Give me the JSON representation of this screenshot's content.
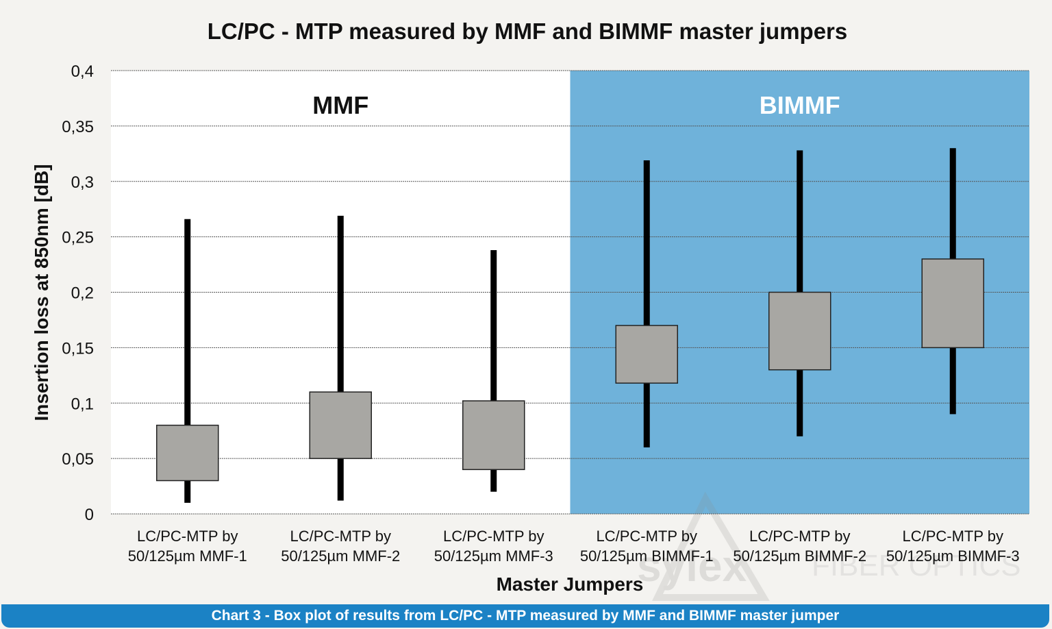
{
  "chart_data": {
    "type": "box",
    "title": "LC/PC - MTP measured by MMF and BIMMF master jumpers",
    "xlabel": "Master Jumpers",
    "ylabel": "Insertion loss at 850nm [dB]",
    "ylim": [
      0,
      0.4
    ],
    "yticks": [
      "0",
      "0,05",
      "0,1",
      "0,15",
      "0,2",
      "0,25",
      "0,3",
      "0,35",
      "0,4"
    ],
    "grid": true,
    "regions": [
      {
        "label": "MMF",
        "categories": [
          0,
          1,
          2
        ],
        "color": "#ffffff"
      },
      {
        "label": "BIMMF",
        "categories": [
          3,
          4,
          5
        ],
        "color": "#6fb2da"
      }
    ],
    "categories": [
      [
        "LC/PC-MTP by",
        "50/125µm MMF-1"
      ],
      [
        "LC/PC-MTP by",
        "50/125µm MMF-2"
      ],
      [
        "LC/PC-MTP by",
        "50/125µm MMF-3"
      ],
      [
        "LC/PC-MTP by",
        "50/125µm BIMMF-1"
      ],
      [
        "LC/PC-MTP by",
        "50/125µm BIMMF-2"
      ],
      [
        "LC/PC-MTP by",
        "50/125µm BIMMF-3"
      ]
    ],
    "boxes": [
      {
        "min": 0.01,
        "q1": 0.03,
        "q3": 0.08,
        "max": 0.266
      },
      {
        "min": 0.012,
        "q1": 0.05,
        "q3": 0.11,
        "max": 0.269
      },
      {
        "min": 0.02,
        "q1": 0.04,
        "q3": 0.102,
        "max": 0.238
      },
      {
        "min": 0.06,
        "q1": 0.118,
        "q3": 0.17,
        "max": 0.319
      },
      {
        "min": 0.07,
        "q1": 0.13,
        "q3": 0.2,
        "max": 0.328
      },
      {
        "min": 0.09,
        "q1": 0.15,
        "q3": 0.23,
        "max": 0.33
      }
    ],
    "box_color": "#a8a7a3",
    "whisker_color": "#000000"
  },
  "watermark": "sylex FIBER OPTICS",
  "caption": "Chart 3 - Box plot of results from LC/PC - MTP  measured by MMF and BIMMF master jumper"
}
